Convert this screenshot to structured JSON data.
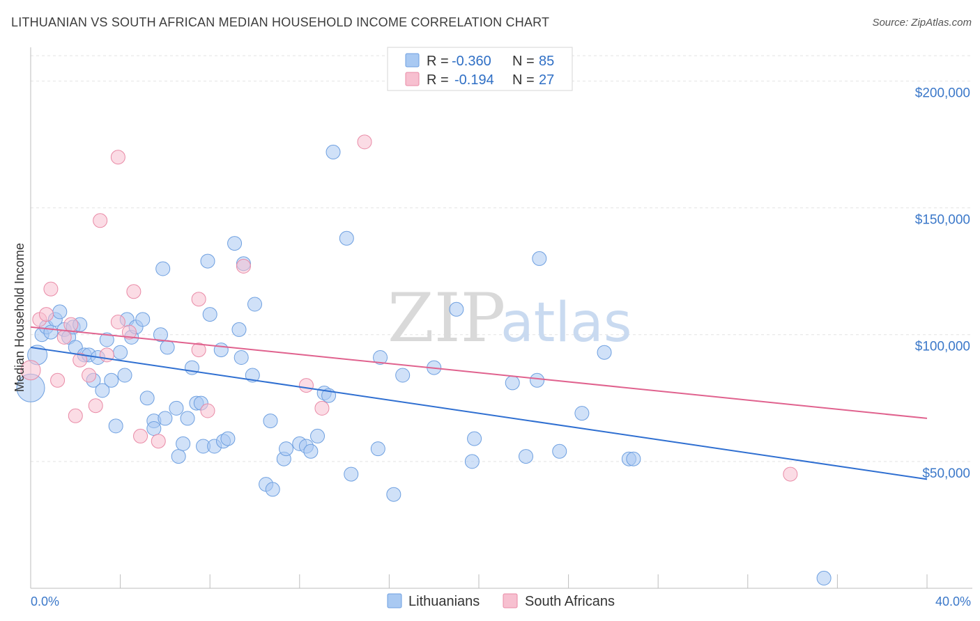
{
  "header": {
    "title": "LITHUANIAN VS SOUTH AFRICAN MEDIAN HOUSEHOLD INCOME CORRELATION CHART",
    "source": "Source: ZipAtlas.com"
  },
  "watermark": {
    "zip": "ZIP",
    "atlas": "atlas"
  },
  "legend": {
    "r_label": "R =",
    "n_label": "N =",
    "rows": [
      {
        "r": "-0.360",
        "n": "85",
        "color": "#a9c9f2",
        "stroke": "#6d9fe0"
      },
      {
        "r": "-0.194",
        "n": "27",
        "color": "#f7c0d0",
        "stroke": "#e98aa6"
      }
    ]
  },
  "chart_data": {
    "type": "scatter",
    "xlabel": "",
    "ylabel": "Median Household Income",
    "xlim": [
      0,
      40
    ],
    "ylim": [
      0,
      210000
    ],
    "y_ticks": [
      {
        "value": 50000,
        "label": "$50,000"
      },
      {
        "value": 100000,
        "label": "$100,000"
      },
      {
        "value": 150000,
        "label": "$150,000"
      },
      {
        "value": 200000,
        "label": "$200,000"
      }
    ],
    "x_tick_labels": [
      {
        "value": 0,
        "label": "0.0%"
      },
      {
        "value": 40,
        "label": "40.0%"
      }
    ],
    "x_minor_ticks": [
      0,
      4,
      8,
      12,
      16,
      20,
      24,
      28,
      32,
      36,
      40
    ],
    "grid": true,
    "series": [
      {
        "name": "Lithuanians",
        "color": "#a9c9f2",
        "stroke": "#6d9fe0",
        "line_color": "#2f6fd1",
        "trend": {
          "x0": 0,
          "y0": 95000,
          "x1": 40,
          "y1": 43000
        },
        "points": [
          [
            0.0,
            79000,
            20
          ],
          [
            0.3,
            92000,
            14
          ],
          [
            0.5,
            100000,
            10
          ],
          [
            0.7,
            103000,
            10
          ],
          [
            0.9,
            101000,
            10
          ],
          [
            1.1,
            106000,
            10
          ],
          [
            1.3,
            109000,
            10
          ],
          [
            1.5,
            102000,
            10
          ],
          [
            1.7,
            99000,
            10
          ],
          [
            1.9,
            103000,
            10
          ],
          [
            2.0,
            95000,
            10
          ],
          [
            2.2,
            104000,
            10
          ],
          [
            2.4,
            92000,
            10
          ],
          [
            2.6,
            92000,
            10
          ],
          [
            2.8,
            82000,
            10
          ],
          [
            3.0,
            91000,
            10
          ],
          [
            3.2,
            78000,
            10
          ],
          [
            3.4,
            98000,
            10
          ],
          [
            3.6,
            82000,
            10
          ],
          [
            3.8,
            64000,
            10
          ],
          [
            4.0,
            93000,
            10
          ],
          [
            4.2,
            84000,
            10
          ],
          [
            4.3,
            106000,
            10
          ],
          [
            4.5,
            99000,
            10
          ],
          [
            4.7,
            103000,
            10
          ],
          [
            5.0,
            106000,
            10
          ],
          [
            5.2,
            75000,
            10
          ],
          [
            5.5,
            66000,
            10
          ],
          [
            5.5,
            63000,
            10
          ],
          [
            5.8,
            100000,
            10
          ],
          [
            5.9,
            126000,
            10
          ],
          [
            6.0,
            67000,
            10
          ],
          [
            6.1,
            95000,
            10
          ],
          [
            6.5,
            71000,
            10
          ],
          [
            6.6,
            52000,
            10
          ],
          [
            6.8,
            57000,
            10
          ],
          [
            7.0,
            67000,
            10
          ],
          [
            7.2,
            87000,
            10
          ],
          [
            7.4,
            73000,
            10
          ],
          [
            7.6,
            73000,
            10
          ],
          [
            7.7,
            56000,
            10
          ],
          [
            7.9,
            129000,
            10
          ],
          [
            8.0,
            108000,
            10
          ],
          [
            8.2,
            56000,
            10
          ],
          [
            8.5,
            94000,
            10
          ],
          [
            8.6,
            58000,
            10
          ],
          [
            8.8,
            59000,
            10
          ],
          [
            9.1,
            136000,
            10
          ],
          [
            9.3,
            102000,
            10
          ],
          [
            9.4,
            91000,
            10
          ],
          [
            9.5,
            128000,
            10
          ],
          [
            9.9,
            84000,
            10
          ],
          [
            10.0,
            112000,
            10
          ],
          [
            10.5,
            41000,
            10
          ],
          [
            10.7,
            66000,
            10
          ],
          [
            10.8,
            39000,
            10
          ],
          [
            11.3,
            51000,
            10
          ],
          [
            11.4,
            55000,
            10
          ],
          [
            12.0,
            57000,
            10
          ],
          [
            12.3,
            56000,
            10
          ],
          [
            12.5,
            54000,
            10
          ],
          [
            12.8,
            60000,
            10
          ],
          [
            13.1,
            77000,
            10
          ],
          [
            13.3,
            76000,
            10
          ],
          [
            13.5,
            172000,
            10
          ],
          [
            14.1,
            138000,
            10
          ],
          [
            14.3,
            45000,
            10
          ],
          [
            15.6,
            91000,
            10
          ],
          [
            15.5,
            55000,
            10
          ],
          [
            16.2,
            37000,
            10
          ],
          [
            16.6,
            84000,
            10
          ],
          [
            18.0,
            87000,
            10
          ],
          [
            19.0,
            110000,
            10
          ],
          [
            19.7,
            50000,
            10
          ],
          [
            19.8,
            59000,
            10
          ],
          [
            21.5,
            81000,
            10
          ],
          [
            22.1,
            52000,
            10
          ],
          [
            22.6,
            82000,
            10
          ],
          [
            22.7,
            130000,
            10
          ],
          [
            23.6,
            54000,
            10
          ],
          [
            24.6,
            69000,
            10
          ],
          [
            25.6,
            93000,
            10
          ],
          [
            26.7,
            51000,
            10
          ],
          [
            26.9,
            51000,
            10
          ],
          [
            35.4,
            4000,
            10
          ]
        ]
      },
      {
        "name": "South Africans",
        "color": "#f7c0d0",
        "stroke": "#e98aa6",
        "line_color": "#e0628e",
        "trend": {
          "x0": 0,
          "y0": 103000,
          "x1": 40,
          "y1": 67000
        },
        "points": [
          [
            0.0,
            86000,
            14
          ],
          [
            0.4,
            106000,
            10
          ],
          [
            0.7,
            108000,
            10
          ],
          [
            0.9,
            118000,
            10
          ],
          [
            1.2,
            82000,
            10
          ],
          [
            1.5,
            99000,
            10
          ],
          [
            1.8,
            104000,
            10
          ],
          [
            2.0,
            68000,
            10
          ],
          [
            2.2,
            90000,
            10
          ],
          [
            2.6,
            84000,
            10
          ],
          [
            2.9,
            72000,
            10
          ],
          [
            3.1,
            145000,
            10
          ],
          [
            3.4,
            92000,
            10
          ],
          [
            3.9,
            105000,
            10
          ],
          [
            3.9,
            170000,
            10
          ],
          [
            4.4,
            101000,
            10
          ],
          [
            4.6,
            117000,
            10
          ],
          [
            4.9,
            60000,
            10
          ],
          [
            5.7,
            58000,
            10
          ],
          [
            7.5,
            94000,
            10
          ],
          [
            7.5,
            114000,
            10
          ],
          [
            7.9,
            70000,
            10
          ],
          [
            9.5,
            127000,
            10
          ],
          [
            12.3,
            80000,
            10
          ],
          [
            13.0,
            71000,
            10
          ],
          [
            14.9,
            176000,
            10
          ],
          [
            33.9,
            45000,
            10
          ]
        ]
      }
    ]
  }
}
